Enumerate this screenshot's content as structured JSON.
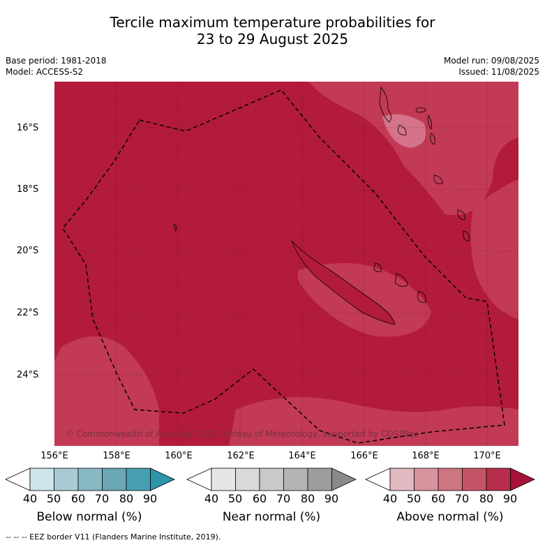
{
  "title": {
    "line1": "Tercile maximum temperature probabilities for",
    "line2": "23 to 29 August 2025"
  },
  "meta": {
    "base_period": "Base period: 1981-2018",
    "model": "Model: ACCESS-S2",
    "model_run": "Model run: 09/08/2025",
    "issued": "Issued: 11/08/2025"
  },
  "map": {
    "latitude_labels": [
      "16°S",
      "18°S",
      "20°S",
      "22°S",
      "24°S"
    ],
    "longitude_labels": [
      "156°E",
      "158°E",
      "160°E",
      "162°E",
      "164°E",
      "166°E",
      "168°E",
      "170°E"
    ],
    "copyright": "© Commonwealth of Australia 2025, Bureau of Meteorology, supported by COSPPac",
    "colors": {
      "above_80_90": "#b31b3a",
      "above_70_80": "#c23a55",
      "above_60_70": "#d4738a",
      "boundary": "#000000"
    }
  },
  "colorbars": [
    {
      "label": "Below normal (%)",
      "ticks": [
        "40",
        "50",
        "60",
        "70",
        "80",
        "90"
      ],
      "colors": [
        "#cde4ea",
        "#a8cbd3",
        "#88b8c4",
        "#6aa7b6",
        "#46a0b2",
        "#2e94aa"
      ]
    },
    {
      "label": "Near normal (%)",
      "ticks": [
        "40",
        "50",
        "60",
        "70",
        "80",
        "90"
      ],
      "colors": [
        "#e6e6e6",
        "#d9d9d9",
        "#c9c9c9",
        "#b4b4b4",
        "#9d9d9d",
        "#8a8a8a"
      ]
    },
    {
      "label": "Above normal (%)",
      "ticks": [
        "40",
        "50",
        "60",
        "70",
        "80",
        "90"
      ],
      "colors": [
        "#e2b9c1",
        "#d8939f",
        "#cd7580",
        "#c45567",
        "#b72e4a",
        "#a8123a"
      ]
    }
  ],
  "footnote": "--  --  -- EEZ border V11 (Flanders Marine Institute, 2019)."
}
